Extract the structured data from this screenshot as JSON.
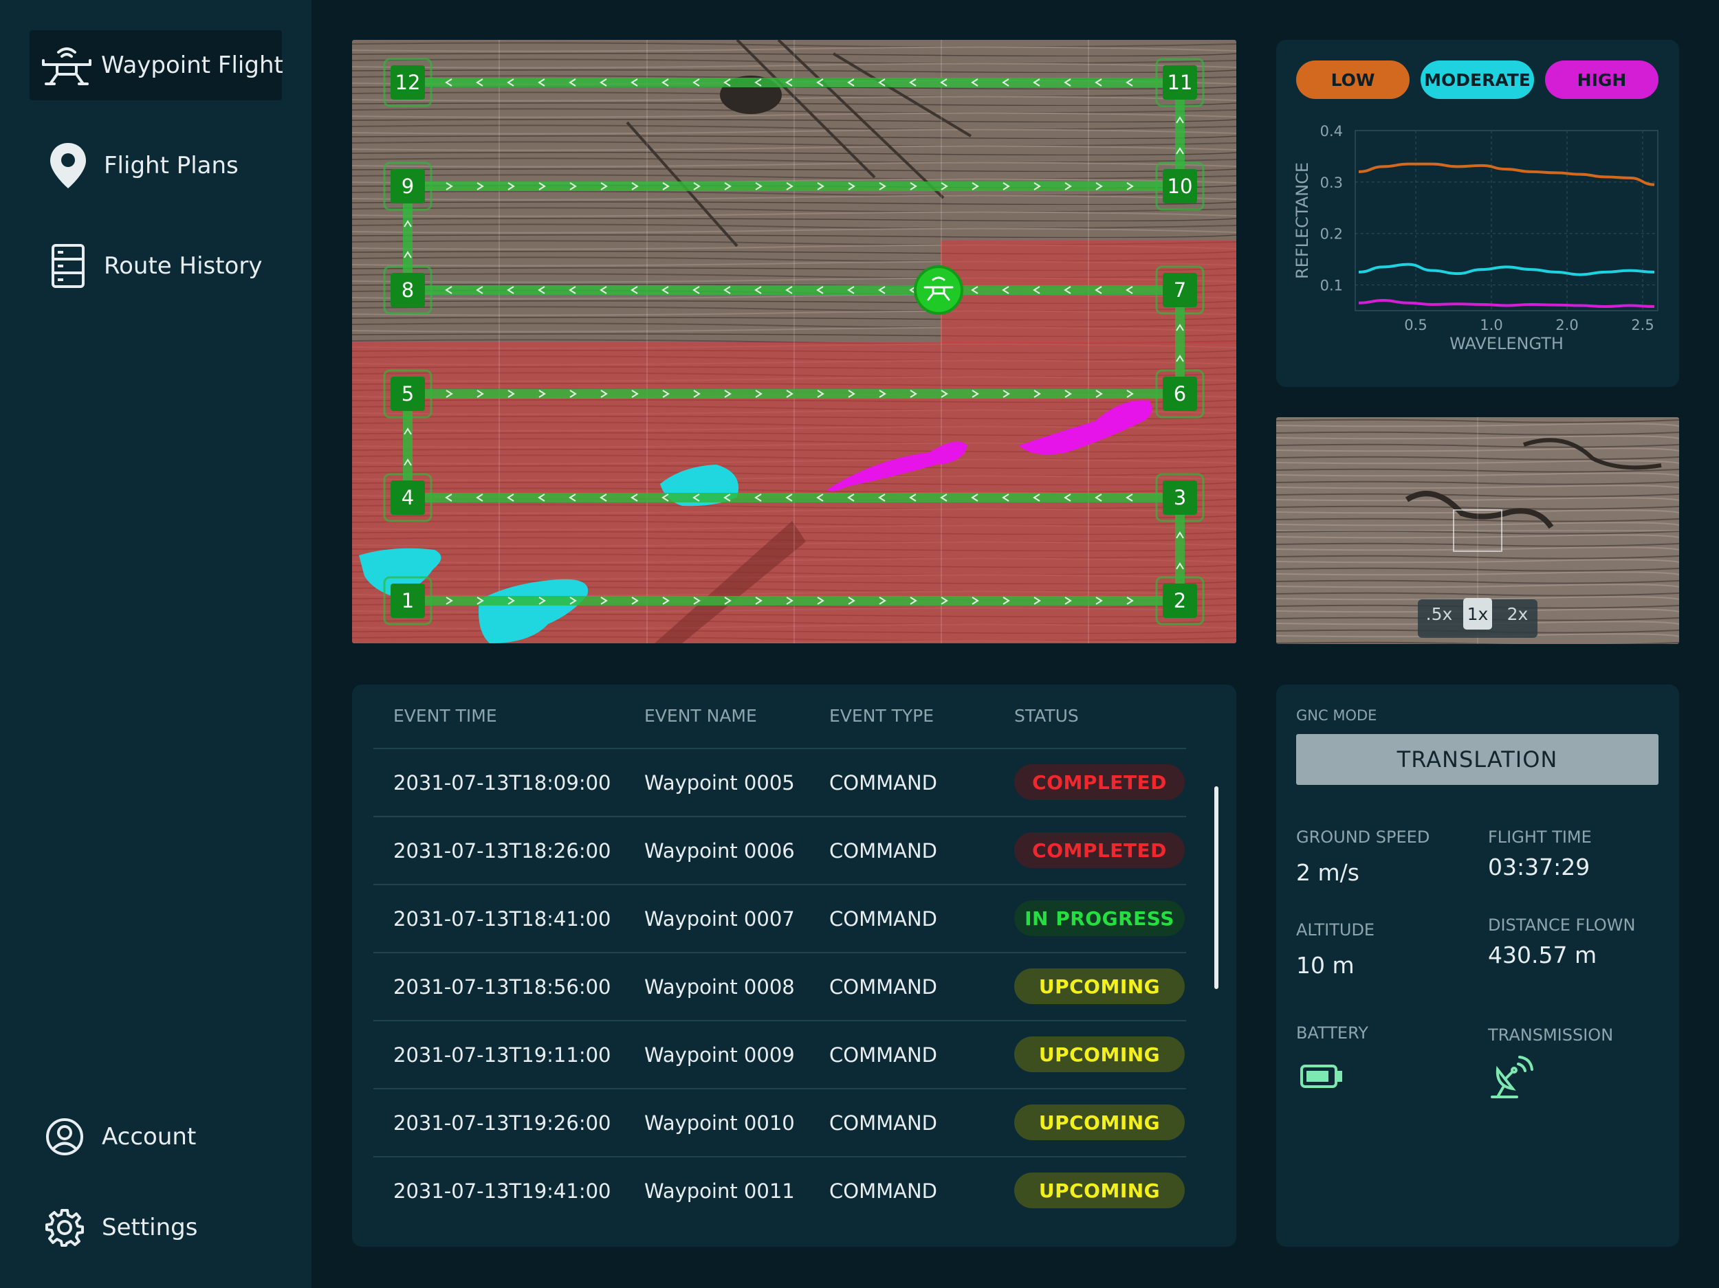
{
  "sidebar": {
    "top_items": [
      {
        "label": "Waypoint Flight",
        "icon": "drone-icon",
        "active": true
      },
      {
        "label": "Flight Plans",
        "icon": "location-pin-icon",
        "active": false
      },
      {
        "label": "Route History",
        "icon": "server-list-icon",
        "active": false
      }
    ],
    "bottom_items": [
      {
        "label": "Account",
        "icon": "user-circle-icon"
      },
      {
        "label": "Settings",
        "icon": "gear-icon"
      }
    ]
  },
  "map": {
    "waypoints": [
      "1",
      "2",
      "3",
      "4",
      "5",
      "6",
      "7",
      "8",
      "9",
      "10",
      "11",
      "12"
    ],
    "drone_icon": "drone-icon"
  },
  "spectral": {
    "legend": [
      "LOW",
      "MODERATE",
      "HIGH"
    ],
    "colors": {
      "low": "#d2691e",
      "moderate": "#1ed3df",
      "high": "#d41ed6"
    },
    "chart_data": {
      "type": "line",
      "xlabel": "WAVELENGTH",
      "ylabel": "REFLECTANCE",
      "x_ticks": [
        "0.5",
        "1.0",
        "2.0",
        "2.5"
      ],
      "y_ticks": [
        "0.4",
        "0.3",
        "0.2",
        "0.1"
      ],
      "ylim": [
        0.05,
        0.4
      ],
      "grid": true,
      "x_index": [
        0,
        1,
        2,
        3,
        4,
        5,
        6,
        7,
        8,
        9,
        10,
        11,
        12
      ],
      "series": [
        {
          "name": "LOW",
          "values": [
            0.32,
            0.33,
            0.335,
            0.335,
            0.33,
            0.332,
            0.325,
            0.32,
            0.318,
            0.315,
            0.31,
            0.308,
            0.295
          ]
        },
        {
          "name": "MODERATE",
          "values": [
            0.125,
            0.135,
            0.14,
            0.128,
            0.122,
            0.13,
            0.135,
            0.13,
            0.125,
            0.12,
            0.125,
            0.128,
            0.125
          ]
        },
        {
          "name": "HIGH",
          "values": [
            0.065,
            0.07,
            0.065,
            0.062,
            0.063,
            0.062,
            0.06,
            0.062,
            0.061,
            0.06,
            0.058,
            0.06,
            0.058
          ]
        }
      ]
    }
  },
  "zoom": {
    "options": [
      ".5x",
      "1x",
      "2x"
    ],
    "selected": "1x"
  },
  "events": {
    "headers": [
      "EVENT TIME",
      "EVENT NAME",
      "EVENT TYPE",
      "STATUS"
    ],
    "rows": [
      {
        "time": "2031-07-13T18:09:00",
        "name": "Waypoint 0005",
        "type": "COMMAND",
        "status": "COMPLETED"
      },
      {
        "time": "2031-07-13T18:26:00",
        "name": "Waypoint 0006",
        "type": "COMMAND",
        "status": "COMPLETED"
      },
      {
        "time": "2031-07-13T18:41:00",
        "name": "Waypoint 0007",
        "type": "COMMAND",
        "status": "IN PROGRESS"
      },
      {
        "time": "2031-07-13T18:56:00",
        "name": "Waypoint 0008",
        "type": "COMMAND",
        "status": "UPCOMING"
      },
      {
        "time": "2031-07-13T19:11:00",
        "name": "Waypoint 0009",
        "type": "COMMAND",
        "status": "UPCOMING"
      },
      {
        "time": "2031-07-13T19:26:00",
        "name": "Waypoint 0010",
        "type": "COMMAND",
        "status": "UPCOMING"
      },
      {
        "time": "2031-07-13T19:41:00",
        "name": "Waypoint 0011",
        "type": "COMMAND",
        "status": "UPCOMING"
      }
    ]
  },
  "gnc": {
    "mode_label": "GNC MODE",
    "mode_value": "TRANSLATION",
    "ground_speed_label": "GROUND SPEED",
    "ground_speed": "2 m/s",
    "flight_time_label": "FLIGHT TIME",
    "flight_time": "03:37:29",
    "altitude_label": "ALTITUDE",
    "altitude": "10 m",
    "distance_label": "DISTANCE FLOWN",
    "distance": "430.57 m",
    "battery_label": "BATTERY",
    "battery_icon": "battery-icon",
    "transmission_label": "TRANSMISSION",
    "transmission_icon": "satellite-dish-icon",
    "accent": "#7de8b0"
  }
}
